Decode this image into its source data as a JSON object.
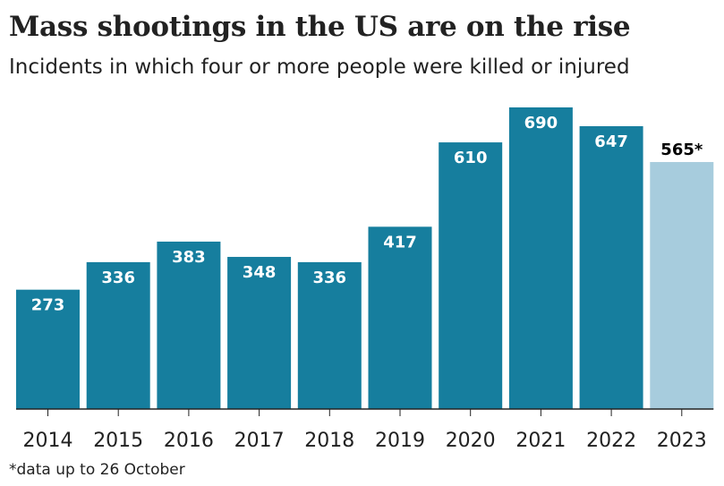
{
  "header": {
    "title": "Mass shootings in the US are on the rise",
    "subtitle": "Incidents in which four or more people were killed or injured"
  },
  "footer": {
    "note": "*data up to 26 October"
  },
  "chart_data": {
    "type": "bar",
    "title": "Mass shootings in the US are on the rise",
    "subtitle": "Incidents in which four or more people were killed or injured",
    "xlabel": "",
    "ylabel": "",
    "categories": [
      "2014",
      "2015",
      "2016",
      "2017",
      "2018",
      "2019",
      "2020",
      "2021",
      "2022",
      "2023"
    ],
    "values": [
      273,
      336,
      383,
      348,
      336,
      417,
      610,
      690,
      647,
      565
    ],
    "value_labels": [
      "273",
      "336",
      "383",
      "348",
      "336",
      "417",
      "610",
      "690",
      "647",
      "565*"
    ],
    "partial": [
      false,
      false,
      false,
      false,
      false,
      false,
      false,
      false,
      false,
      true
    ],
    "ylim": [
      0,
      690
    ],
    "grid": false,
    "legend": "none",
    "colors": {
      "bar": "#167e9e",
      "bar_partial": "#a7ccdd",
      "label_inside": "#ffffff",
      "label_outside": "#000000",
      "axis": "#222222"
    }
  }
}
